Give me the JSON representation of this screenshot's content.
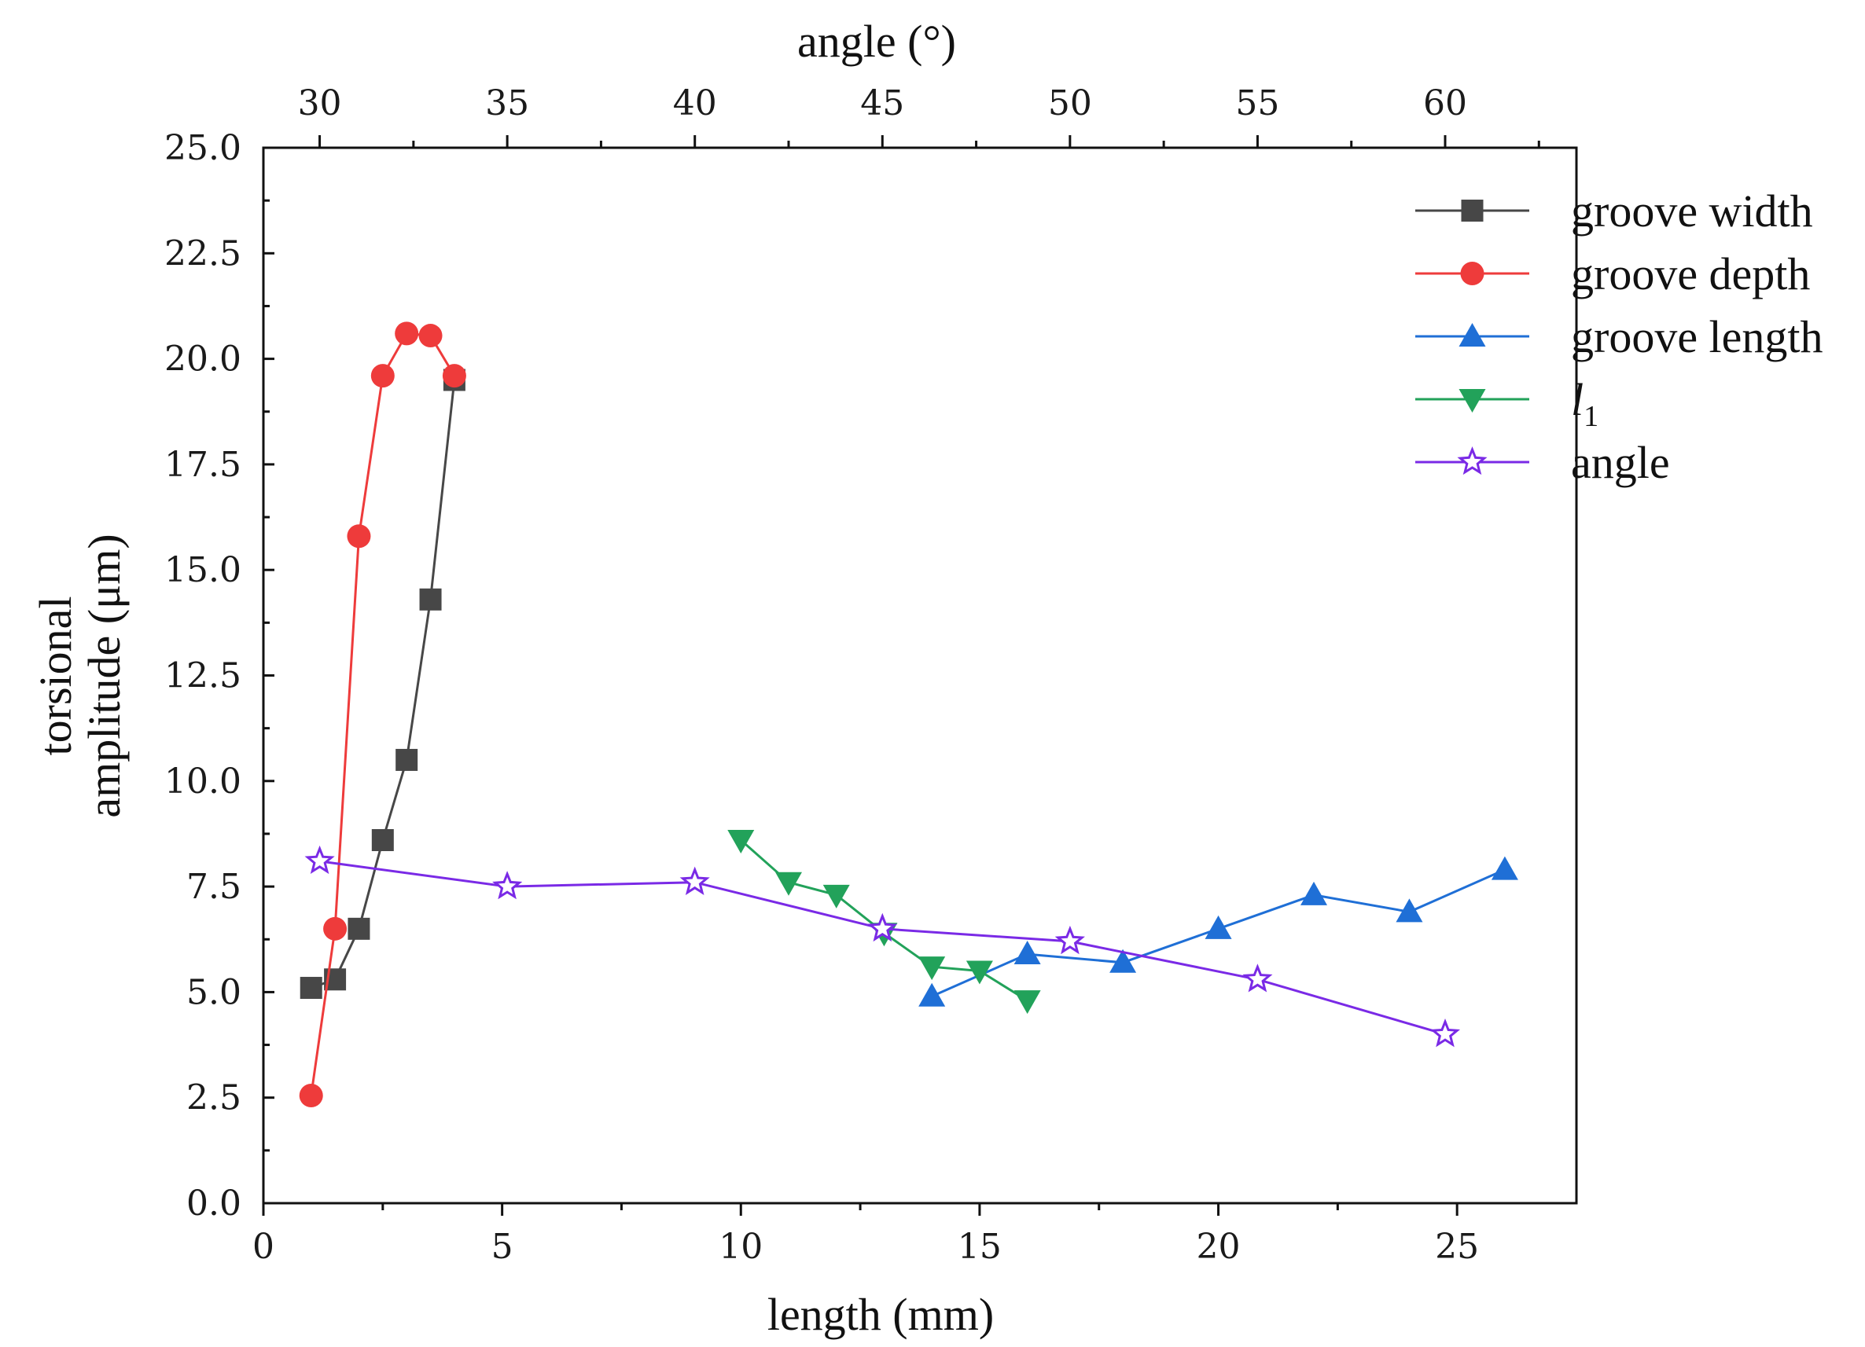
{
  "chart_data": {
    "type": "line",
    "xlabel": "length (mm)",
    "x2label": "angle (°)",
    "ylabel": "torsional amplitude (μm)",
    "ylabel_lines": [
      "torsional",
      "amplitude (μm)"
    ],
    "xlim": [
      0,
      27.5
    ],
    "x2lim": [
      28.5,
      63.5
    ],
    "ylim": [
      0,
      25
    ],
    "x_ticks": [
      0,
      5,
      10,
      15,
      20,
      25
    ],
    "x_tick_labels": [
      "0",
      "5",
      "10",
      "15",
      "20",
      "25"
    ],
    "x2_ticks": [
      30,
      35,
      40,
      45,
      50,
      55,
      60
    ],
    "x2_tick_labels": [
      "30",
      "35",
      "40",
      "45",
      "50",
      "55",
      "60"
    ],
    "y_ticks": [
      0,
      2.5,
      5,
      7.5,
      10,
      12.5,
      15,
      17.5,
      20,
      22.5,
      25
    ],
    "y_tick_labels": [
      "0.0",
      "2.5",
      "5.0",
      "7.5",
      "10.0",
      "12.5",
      "15.0",
      "17.5",
      "20.0",
      "22.5",
      "25.0"
    ],
    "grid": false,
    "legend_position": "top-right",
    "series": [
      {
        "name": "groove width",
        "color": "#474747",
        "marker": "square",
        "axis": "bottom",
        "x": [
          1,
          1.5,
          2,
          2.5,
          3,
          3.5,
          4
        ],
        "y": [
          5.1,
          5.3,
          6.5,
          8.6,
          10.5,
          14.3,
          19.5
        ]
      },
      {
        "name": "groove depth",
        "color": "#ee3b3b",
        "marker": "circle",
        "axis": "bottom",
        "x": [
          1,
          1.5,
          2,
          2.5,
          3,
          3.5,
          4
        ],
        "y": [
          2.55,
          6.5,
          15.8,
          19.6,
          20.6,
          20.55,
          19.6
        ]
      },
      {
        "name": "groove length",
        "color": "#1f6fd6",
        "marker": "triangle-up",
        "axis": "bottom",
        "x": [
          14,
          16,
          18,
          20,
          22,
          24,
          26
        ],
        "y": [
          4.9,
          5.9,
          5.7,
          6.5,
          7.3,
          6.9,
          7.9
        ]
      },
      {
        "name": "l",
        "name_subscript": "1",
        "color": "#22a25a",
        "marker": "triangle-down",
        "axis": "bottom",
        "x": [
          10,
          11,
          12,
          13,
          14,
          15,
          16
        ],
        "y": [
          8.6,
          7.6,
          7.3,
          6.4,
          5.6,
          5.5,
          4.8
        ]
      },
      {
        "name": "angle",
        "color": "#7a2ae6",
        "marker": "star",
        "axis": "top",
        "x": [
          30,
          35,
          40,
          45,
          50,
          55,
          60
        ],
        "y": [
          8.1,
          7.5,
          7.6,
          6.5,
          6.2,
          5.3,
          4.0
        ]
      }
    ]
  }
}
